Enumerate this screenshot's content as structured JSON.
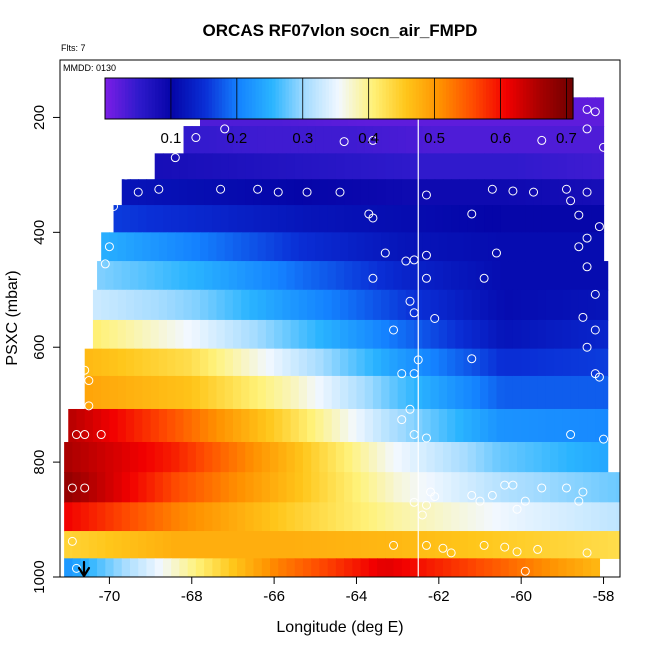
{
  "chart_data": {
    "type": "heatmap",
    "title": "ORCAS RF07vlon socn_air_FMPD",
    "xlabel": "Longitude (deg E)",
    "ylabel": "PSXC (mbar)",
    "xlim": [
      -71.2,
      -57.6
    ],
    "ylim": [
      1000,
      100
    ],
    "x_ticks": [
      -70,
      -68,
      -66,
      -64,
      -62,
      -60,
      -58
    ],
    "x_tick_labels": [
      "-70",
      "-68",
      "-66",
      "-64",
      "-62",
      "-60",
      "-58"
    ],
    "y_ticks": [
      200,
      400,
      600,
      800,
      1000
    ],
    "y_tick_labels": [
      "200",
      "400",
      "600",
      "800",
      "1000"
    ],
    "annotations": {
      "flights": "Flts: 7",
      "date": "MMDD: 0130"
    },
    "colorbar": {
      "range": [
        0,
        0.71
      ],
      "ticks": [
        0.1,
        0.2,
        0.3,
        0.4,
        0.5,
        0.6,
        0.7
      ],
      "tick_labels": [
        "0.1",
        "0.2",
        "0.3",
        "0.4",
        "0.5",
        "0.6",
        "0.7"
      ],
      "colors": [
        "#7c1ee6",
        "#2f1acc",
        "#0505a8",
        "#0a2fd6",
        "#1482ff",
        "#2ab4ff",
        "#a6dcff",
        "#f2f8ff",
        "#fff27a",
        "#ffc61a",
        "#ff9200",
        "#ff4d00",
        "#f20000",
        "#a80000",
        "#6e0000"
      ]
    },
    "layers": [
      {
        "p": 190,
        "xmin": -67.8,
        "xmax": -58.0,
        "values": [
          0.03,
          0.03,
          0.02,
          0.02,
          0.02,
          0.02
        ]
      },
      {
        "p": 240,
        "xmin": -68.2,
        "xmax": -58.0,
        "values": [
          0.05,
          0.04,
          0.04,
          0.03,
          0.03,
          0.03
        ]
      },
      {
        "p": 285,
        "xmin": -68.9,
        "xmax": -58.0,
        "values": [
          0.08,
          0.07,
          0.06,
          0.05,
          0.05,
          0.04
        ]
      },
      {
        "p": 330,
        "xmin": -69.7,
        "xmax": -58.0,
        "values": [
          0.12,
          0.11,
          0.1,
          0.09,
          0.09,
          0.08
        ]
      },
      {
        "p": 375,
        "xmin": -69.9,
        "xmax": -58.0,
        "values": [
          0.16,
          0.14,
          0.12,
          0.11,
          0.1,
          0.1
        ]
      },
      {
        "p": 425,
        "xmin": -70.2,
        "xmax": -58.0,
        "values": [
          0.25,
          0.2,
          0.15,
          0.12,
          0.11,
          0.11
        ]
      },
      {
        "p": 475,
        "xmin": -70.3,
        "xmax": -57.9,
        "values": [
          0.29,
          0.25,
          0.19,
          0.14,
          0.11,
          0.11
        ]
      },
      {
        "p": 525,
        "xmin": -70.4,
        "xmax": -57.9,
        "values": [
          0.33,
          0.29,
          0.22,
          0.16,
          0.11,
          0.12
        ]
      },
      {
        "p": 580,
        "xmin": -70.4,
        "xmax": -57.9,
        "values": [
          0.41,
          0.35,
          0.27,
          0.19,
          0.12,
          0.14
        ]
      },
      {
        "p": 625,
        "xmin": -70.6,
        "xmax": -57.9,
        "values": [
          0.47,
          0.43,
          0.33,
          0.23,
          0.15,
          0.16
        ]
      },
      {
        "p": 675,
        "xmin": -70.6,
        "xmax": -57.9,
        "values": [
          0.49,
          0.46,
          0.38,
          0.27,
          0.18,
          0.18
        ]
      },
      {
        "p": 740,
        "xmin": -71.0,
        "xmax": -57.9,
        "values": [
          0.65,
          0.55,
          0.44,
          0.31,
          0.22,
          0.21
        ]
      },
      {
        "p": 790,
        "xmin": -71.1,
        "xmax": -57.9,
        "values": [
          0.66,
          0.59,
          0.48,
          0.36,
          0.28,
          0.24
        ]
      },
      {
        "p": 845,
        "xmin": -71.1,
        "xmax": -57.6,
        "values": [
          0.68,
          0.56,
          0.47,
          0.37,
          0.31,
          0.28
        ]
      },
      {
        "p": 895,
        "xmin": -71.1,
        "xmax": -57.6,
        "values": [
          0.61,
          0.52,
          0.45,
          0.39,
          0.35,
          0.32
        ]
      },
      {
        "p": 945,
        "xmin": -71.1,
        "xmax": -57.6,
        "values": [
          0.44,
          0.48,
          0.48,
          0.47,
          0.45,
          0.43
        ]
      },
      {
        "p": 990,
        "xmin": -71.1,
        "xmax": -58.1,
        "values": [
          0.22,
          0.37,
          0.52,
          0.62,
          0.55,
          0.47
        ]
      }
    ],
    "obs_points": [
      [
        -67.6,
        192
      ],
      [
        -67.0,
        186
      ],
      [
        -66.2,
        188
      ],
      [
        -65.4,
        186
      ],
      [
        -64.6,
        186
      ],
      [
        -63.0,
        192
      ],
      [
        -62.2,
        188
      ],
      [
        -61.8,
        188
      ],
      [
        -61.6,
        188
      ],
      [
        -61.4,
        188
      ],
      [
        -61.0,
        188
      ],
      [
        -60.7,
        188
      ],
      [
        -60.5,
        188
      ],
      [
        -60.2,
        188
      ],
      [
        -59.9,
        188
      ],
      [
        -59.1,
        190
      ],
      [
        -58.4,
        186
      ],
      [
        -58.2,
        190
      ],
      [
        -67.9,
        235
      ],
      [
        -68.6,
        240
      ],
      [
        -67.2,
        220
      ],
      [
        -64.3,
        242
      ],
      [
        -63.6,
        240
      ],
      [
        -59.5,
        240
      ],
      [
        -58.4,
        220
      ],
      [
        -58.0,
        252
      ],
      [
        -68.4,
        270
      ],
      [
        -69.6,
        300
      ],
      [
        -67.3,
        325
      ],
      [
        -68.8,
        325
      ],
      [
        -69.3,
        330
      ],
      [
        -66.4,
        325
      ],
      [
        -65.9,
        330
      ],
      [
        -65.2,
        330
      ],
      [
        -64.4,
        330
      ],
      [
        -62.3,
        335
      ],
      [
        -60.7,
        325
      ],
      [
        -60.2,
        328
      ],
      [
        -59.7,
        330
      ],
      [
        -58.9,
        325
      ],
      [
        -58.4,
        330
      ],
      [
        -58.8,
        345
      ],
      [
        -69.9,
        355
      ],
      [
        -63.7,
        368
      ],
      [
        -63.6,
        375
      ],
      [
        -61.2,
        368
      ],
      [
        -58.6,
        370
      ],
      [
        -58.1,
        390
      ],
      [
        -58.4,
        410
      ],
      [
        -70.0,
        425
      ],
      [
        -70.1,
        455
      ],
      [
        -63.3,
        436
      ],
      [
        -62.8,
        450
      ],
      [
        -62.6,
        448
      ],
      [
        -62.3,
        440
      ],
      [
        -60.6,
        436
      ],
      [
        -58.6,
        425
      ],
      [
        -58.4,
        460
      ],
      [
        -60.9,
        480
      ],
      [
        -62.3,
        480
      ],
      [
        -63.6,
        480
      ],
      [
        -58.2,
        508
      ],
      [
        -62.7,
        520
      ],
      [
        -62.6,
        540
      ],
      [
        -62.1,
        550
      ],
      [
        -58.5,
        548
      ],
      [
        -58.2,
        570
      ],
      [
        -63.1,
        570
      ],
      [
        -58.4,
        600
      ],
      [
        -70.6,
        640
      ],
      [
        -70.5,
        658
      ],
      [
        -62.9,
        646
      ],
      [
        -62.6,
        646
      ],
      [
        -62.5,
        622
      ],
      [
        -61.2,
        620
      ],
      [
        -58.2,
        646
      ],
      [
        -58.1,
        652
      ],
      [
        -70.5,
        702
      ],
      [
        -62.7,
        708
      ],
      [
        -62.9,
        726
      ],
      [
        -70.8,
        752
      ],
      [
        -70.6,
        752
      ],
      [
        -70.2,
        752
      ],
      [
        -62.6,
        752
      ],
      [
        -62.3,
        758
      ],
      [
        -58.8,
        752
      ],
      [
        -58.0,
        760
      ],
      [
        -70.9,
        845
      ],
      [
        -70.6,
        845
      ],
      [
        -60.4,
        840
      ],
      [
        -60.2,
        840
      ],
      [
        -59.9,
        868
      ],
      [
        -59.5,
        845
      ],
      [
        -58.9,
        845
      ],
      [
        -58.5,
        852
      ],
      [
        -58.6,
        868
      ],
      [
        -61.2,
        858
      ],
      [
        -61.0,
        868
      ],
      [
        -60.7,
        858
      ],
      [
        -60.1,
        882
      ],
      [
        -62.2,
        852
      ],
      [
        -62.1,
        860
      ],
      [
        -62.3,
        875
      ],
      [
        -62.6,
        870
      ],
      [
        -62.4,
        892
      ],
      [
        -63.1,
        945
      ],
      [
        -62.3,
        945
      ],
      [
        -61.9,
        950
      ],
      [
        -61.7,
        958
      ],
      [
        -60.9,
        945
      ],
      [
        -60.4,
        948
      ],
      [
        -60.1,
        956
      ],
      [
        -59.6,
        952
      ],
      [
        -58.4,
        958
      ],
      [
        -59.9,
        990
      ],
      [
        -70.8,
        985
      ],
      [
        -70.9,
        938
      ]
    ]
  }
}
